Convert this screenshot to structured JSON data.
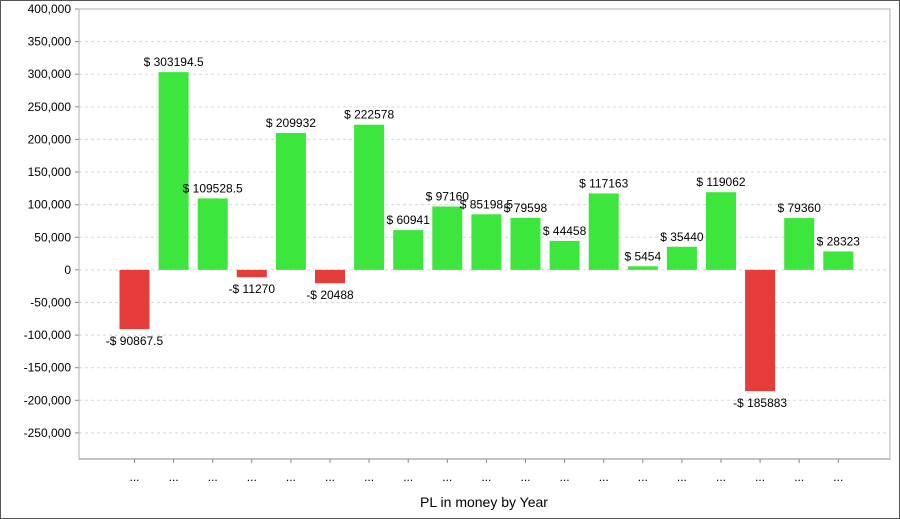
{
  "chart_data": {
    "type": "bar",
    "title": "",
    "xlabel": "PL in money by Year",
    "ylabel": "",
    "ylim": [
      -290000,
      400000
    ],
    "yticks": [
      400000,
      350000,
      300000,
      250000,
      200000,
      150000,
      100000,
      50000,
      0,
      -50000,
      -100000,
      -150000,
      -200000,
      -250000
    ],
    "ytick_labels": [
      "400,000",
      "350,000",
      "300,000",
      "250,000",
      "200,000",
      "150,000",
      "100,000",
      "50,000",
      "0",
      "-50,000",
      "-100,000",
      "-150,000",
      "-200,000",
      "-250,000"
    ],
    "grid": true,
    "categories": [
      "...",
      "...",
      "...",
      "...",
      "...",
      "...",
      "...",
      "...",
      "...",
      "...",
      "...",
      "...",
      "...",
      "...",
      "...",
      "...",
      "...",
      "...",
      "..."
    ],
    "values": [
      -90867.5,
      303194.5,
      109528.5,
      -11270,
      209932,
      -20488,
      222578,
      60941,
      97160,
      85198.5,
      79598,
      44458,
      117163,
      5454,
      35440,
      119062,
      -185883,
      79360,
      28323
    ],
    "data_labels": [
      "-$ 90867.5",
      "$ 303194.5",
      "$ 109528.5",
      "-$ 11270",
      "$ 209932",
      "-$ 20488",
      "$ 222578",
      "$ 60941",
      "$ 97160",
      "$ 85198.5",
      "$ 79598",
      "$ 44458",
      "$ 117163",
      "$ 5454",
      "$ 35440",
      "$ 119062",
      "-$ 185883",
      "$ 79360",
      "$ 28323"
    ],
    "colors": {
      "positive": "#3ce63c",
      "negative": "#e63c3c",
      "grid": "#d9d9d9",
      "axis": "#888888"
    }
  }
}
